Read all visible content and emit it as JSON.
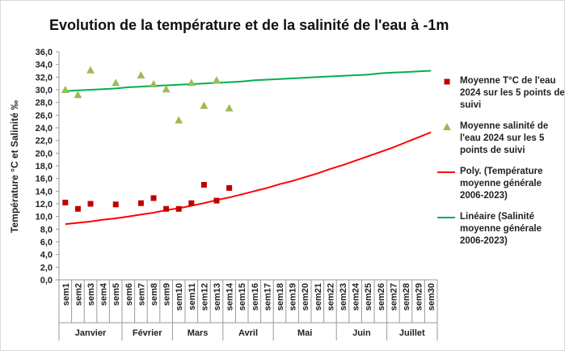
{
  "chart_data": {
    "type": "scatter",
    "title": "Evolution de la température et de la salinité de l'eau à -1m",
    "y_label": "Température °C et Salinité ‰",
    "categories": [
      "sem1",
      "sem2",
      "sem3",
      "sem4",
      "sem5",
      "sem6",
      "sem7",
      "sem8",
      "sem9",
      "sem10",
      "sem11",
      "sem12",
      "sem13",
      "sem14",
      "sem15",
      "sem16",
      "sem17",
      "sem18",
      "sem19",
      "sem20",
      "sem21",
      "sem22",
      "sem23",
      "sem24",
      "sem25",
      "sem26",
      "sem27",
      "sem28",
      "sem29",
      "sem30"
    ],
    "groups": [
      {
        "label": "Janvier",
        "from": 0,
        "to": 4
      },
      {
        "label": "Février",
        "from": 5,
        "to": 8
      },
      {
        "label": "Mars",
        "from": 9,
        "to": 12
      },
      {
        "label": "Avril",
        "from": 13,
        "to": 16
      },
      {
        "label": "Mai",
        "from": 17,
        "to": 21
      },
      {
        "label": "Juin",
        "from": 22,
        "to": 25
      },
      {
        "label": "Juillet",
        "from": 26,
        "to": 29
      }
    ],
    "ylim": [
      0,
      36
    ],
    "yticks": [
      {
        "value": 0,
        "label": "0,0"
      },
      {
        "value": 2,
        "label": "2,0"
      },
      {
        "value": 4,
        "label": "4,0"
      },
      {
        "value": 6,
        "label": "6,0"
      },
      {
        "value": 8,
        "label": "8,0"
      },
      {
        "value": 10,
        "label": "10,0"
      },
      {
        "value": 12,
        "label": "12,0"
      },
      {
        "value": 14,
        "label": "14,0"
      },
      {
        "value": 16,
        "label": "16,0"
      },
      {
        "value": 18,
        "label": "18,0"
      },
      {
        "value": 20,
        "label": "20,0"
      },
      {
        "value": 22,
        "label": "22,0"
      },
      {
        "value": 24,
        "label": "24,0"
      },
      {
        "value": 26,
        "label": "26,0"
      },
      {
        "value": 28,
        "label": "28,0"
      },
      {
        "value": 30,
        "label": "30,0"
      },
      {
        "value": 32,
        "label": "32,0"
      },
      {
        "value": 34,
        "label": "34,0"
      },
      {
        "value": 36,
        "label": "36,0"
      }
    ],
    "grid": false,
    "legend": "right",
    "series": [
      {
        "name": "Moyenne T°C de l'eau 2024 sur les 5 points de suivi",
        "type": "scatter",
        "marker": "square",
        "color": "#c00000",
        "values": [
          12.2,
          11.2,
          12.0,
          null,
          11.9,
          null,
          12.1,
          12.9,
          11.2,
          11.2,
          12.1,
          15.0,
          12.5,
          14.5,
          null,
          null,
          null,
          null,
          null,
          null,
          null,
          null,
          null,
          null,
          null,
          null,
          null,
          null,
          null,
          null
        ]
      },
      {
        "name": "Moyenne salinité de l'eau 2024 sur les 5 points de suivi",
        "type": "scatter",
        "marker": "triangle",
        "color": "#9bbb59",
        "values": [
          30.0,
          29.2,
          33.1,
          null,
          31.1,
          null,
          32.3,
          30.9,
          30.1,
          25.2,
          31.1,
          27.5,
          31.5,
          27.1,
          null,
          null,
          null,
          null,
          null,
          null,
          null,
          null,
          null,
          null,
          null,
          null,
          null,
          null,
          null,
          null
        ]
      },
      {
        "name": "Poly. (Température moyenne générale 2006-2023)",
        "type": "line",
        "color": "#ff0000",
        "values": [
          8.8,
          9.0,
          9.2,
          9.5,
          9.7,
          10.0,
          10.3,
          10.6,
          11.0,
          11.3,
          11.7,
          12.1,
          12.6,
          13.0,
          13.5,
          14.0,
          14.5,
          15.1,
          15.6,
          16.2,
          16.8,
          17.5,
          18.1,
          18.8,
          19.5,
          20.2,
          20.9,
          21.7,
          22.5,
          23.3
        ]
      },
      {
        "name": "Linéaire (Salinité moyenne générale 2006-2023)",
        "type": "line",
        "color": "#00b050",
        "values": [
          29.8,
          29.9,
          30.0,
          30.1,
          30.2,
          30.4,
          30.5,
          30.6,
          30.7,
          30.8,
          30.9,
          31.0,
          31.1,
          31.2,
          31.3,
          31.5,
          31.6,
          31.7,
          31.8,
          31.9,
          32.0,
          32.1,
          32.2,
          32.3,
          32.4,
          32.6,
          32.7,
          32.8,
          32.9,
          33.0
        ]
      }
    ]
  }
}
